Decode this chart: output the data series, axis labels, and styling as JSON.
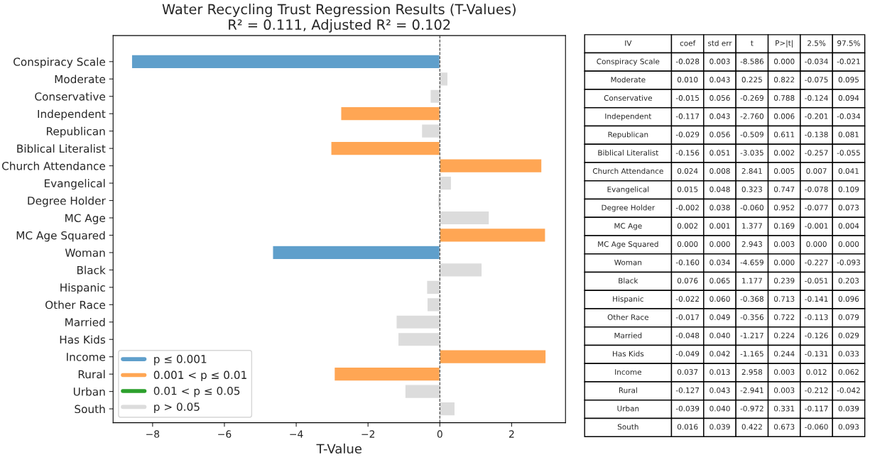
{
  "chart_data": [
    {
      "type": "bar",
      "orientation": "horizontal",
      "title": "Water Recycling Trust Regression Results (T-Values)\nR² = 0.111, Adjusted R² = 0.102",
      "xlabel": "T-Value",
      "categories": [
        "Conspiracy Scale",
        "Moderate",
        "Conservative",
        "Independent",
        "Republican",
        "Biblical Literalist",
        "Church Attendance",
        "Evangelical",
        "Degree Holder",
        "MC Age",
        "MC Age Squared",
        "Woman",
        "Black",
        "Hispanic",
        "Other Race",
        "Married",
        "Has Kids",
        "Income",
        "Rural",
        "Urban",
        "South"
      ],
      "series": [
        {
          "name": "p ≤ 0.001",
          "color": "#5f9fcb",
          "values": [
            -8.586,
            null,
            null,
            null,
            null,
            null,
            null,
            null,
            null,
            null,
            null,
            -4.659,
            null,
            null,
            null,
            null,
            null,
            null,
            null,
            null,
            null
          ]
        },
        {
          "name": "0.001 < p ≤ 0.01",
          "color": "#ffa654",
          "values": [
            null,
            null,
            null,
            -2.76,
            null,
            -3.035,
            2.841,
            null,
            null,
            null,
            2.943,
            null,
            null,
            null,
            null,
            null,
            null,
            2.958,
            -2.941,
            null,
            null
          ]
        },
        {
          "name": "0.01 < p ≤ 0.05",
          "color": "#2ca02c",
          "values": [
            null,
            null,
            null,
            null,
            null,
            null,
            null,
            null,
            null,
            null,
            null,
            null,
            null,
            null,
            null,
            null,
            null,
            null,
            null,
            null,
            null
          ]
        },
        {
          "name": "p > 0.05",
          "color": "#dcdcdc",
          "values": [
            null,
            0.225,
            -0.269,
            null,
            -0.509,
            null,
            null,
            0.323,
            -0.06,
            1.377,
            null,
            null,
            1.177,
            -0.368,
            -0.356,
            -1.217,
            -1.165,
            null,
            null,
            -0.972,
            0.422
          ]
        }
      ],
      "xlim": [
        -9.1,
        3.5
      ],
      "xticks": [
        {
          "value": -8,
          "label": "−8"
        },
        {
          "value": -6,
          "label": "−6"
        },
        {
          "value": -4,
          "label": "−4"
        },
        {
          "value": -2,
          "label": "−2"
        },
        0,
        2
      ],
      "ref_lines": [
        {
          "axis": "x",
          "value": 0,
          "color": "#333333",
          "line_style": "dashed"
        }
      ],
      "legend": "bottom left",
      "grid": false
    },
    {
      "type": "other",
      "categories": [
        "IV",
        "coef",
        "std err",
        "t",
        "P>|t|",
        "2.5%",
        "97.5%"
      ],
      "cell_labels": [
        [
          "Conspiracy Scale",
          "-0.028",
          "0.003",
          "-8.586",
          "0.000",
          "-0.034",
          "-0.021"
        ],
        [
          "Moderate",
          "0.010",
          "0.043",
          "0.225",
          "0.822",
          "-0.075",
          "0.095"
        ],
        [
          "Conservative",
          "-0.015",
          "0.056",
          "-0.269",
          "0.788",
          "-0.124",
          "0.094"
        ],
        [
          "Independent",
          "-0.117",
          "0.043",
          "-2.760",
          "0.006",
          "-0.201",
          "-0.034"
        ],
        [
          "Republican",
          "-0.029",
          "0.056",
          "-0.509",
          "0.611",
          "-0.138",
          "0.081"
        ],
        [
          "Biblical Literalist",
          "-0.156",
          "0.051",
          "-3.035",
          "0.002",
          "-0.257",
          "-0.055"
        ],
        [
          "Church Attendance",
          "0.024",
          "0.008",
          "2.841",
          "0.005",
          "0.007",
          "0.041"
        ],
        [
          "Evangelical",
          "0.015",
          "0.048",
          "0.323",
          "0.747",
          "-0.078",
          "0.109"
        ],
        [
          "Degree Holder",
          "-0.002",
          "0.038",
          "-0.060",
          "0.952",
          "-0.077",
          "0.073"
        ],
        [
          "MC Age",
          "0.002",
          "0.001",
          "1.377",
          "0.169",
          "-0.001",
          "0.004"
        ],
        [
          "MC Age Squared",
          "0.000",
          "0.000",
          "2.943",
          "0.003",
          "0.000",
          "0.000"
        ],
        [
          "Woman",
          "-0.160",
          "0.034",
          "-4.659",
          "0.000",
          "-0.227",
          "-0.093"
        ],
        [
          "Black",
          "0.076",
          "0.065",
          "1.177",
          "0.239",
          "-0.051",
          "0.203"
        ],
        [
          "Hispanic",
          "-0.022",
          "0.060",
          "-0.368",
          "0.713",
          "-0.141",
          "0.096"
        ],
        [
          "Other Race",
          "-0.017",
          "0.049",
          "-0.356",
          "0.722",
          "-0.113",
          "0.079"
        ],
        [
          "Married",
          "-0.048",
          "0.040",
          "-1.217",
          "0.224",
          "-0.126",
          "0.029"
        ],
        [
          "Has Kids",
          "-0.049",
          "0.042",
          "-1.165",
          "0.244",
          "-0.131",
          "0.033"
        ],
        [
          "Income",
          "0.037",
          "0.013",
          "2.958",
          "0.003",
          "0.012",
          "0.062"
        ],
        [
          "Rural",
          "-0.127",
          "0.043",
          "-2.941",
          "0.003",
          "-0.212",
          "-0.042"
        ],
        [
          "Urban",
          "-0.039",
          "0.040",
          "-0.972",
          "0.331",
          "-0.117",
          "0.039"
        ],
        [
          "South",
          "0.016",
          "0.039",
          "0.422",
          "0.673",
          "-0.060",
          "0.093"
        ]
      ]
    }
  ]
}
